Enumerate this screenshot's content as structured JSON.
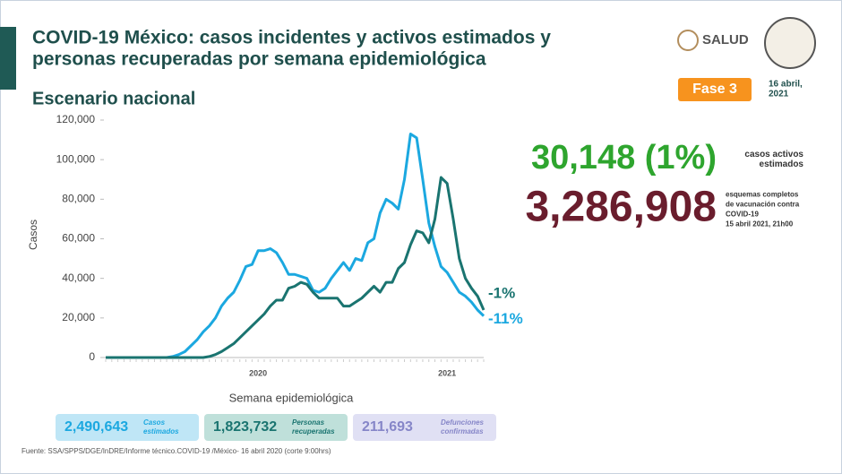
{
  "header": {
    "title": [
      "COVID-19 México: casos incidentes y activos estimados y",
      "personas recuperadas por semana epidemiológica"
    ],
    "subtitle": "Escenario nacional",
    "logo": "SALUD",
    "phase": "Fase 3",
    "date": [
      "16 abril,",
      "2021"
    ]
  },
  "chart_data": {
    "type": "line",
    "ylabel": "Casos",
    "xlabel": "Semana epidemiológica",
    "categories": [
      null,
      null,
      null,
      null,
      null,
      null,
      null,
      null,
      null,
      null,
      null,
      null,
      null,
      null,
      null,
      null,
      null,
      null,
      null,
      null,
      null,
      null,
      null,
      null,
      null,
      "2020",
      null,
      null,
      null,
      null,
      null,
      null,
      null,
      null,
      null,
      null,
      null,
      null,
      null,
      null,
      null,
      null,
      null,
      null,
      null,
      null,
      null,
      null,
      null,
      null,
      null,
      null,
      null,
      null,
      null,
      null,
      "2021",
      null,
      null,
      null,
      null,
      null,
      null
    ],
    "series": [
      {
        "color": "#1ba8e0",
        "values": [
          0,
          0,
          0,
          0,
          0,
          0,
          0,
          0,
          0,
          0,
          0,
          500,
          1500,
          3000,
          6000,
          9000,
          13000,
          16000,
          20000,
          26000,
          30000,
          33000,
          39000,
          46000,
          47000,
          54000,
          54000,
          55000,
          53000,
          48000,
          42000,
          42000,
          41000,
          40000,
          34000,
          33000,
          35000,
          40000,
          44000,
          48000,
          44000,
          50000,
          49000,
          58000,
          60000,
          73000,
          80000,
          78000,
          75000,
          90000,
          113000,
          111000,
          90000,
          68000,
          56000,
          46000,
          43000,
          38000,
          33000,
          31000,
          28000,
          24000,
          21000
        ]
      },
      {
        "color": "#1a7470",
        "values": [
          0,
          0,
          0,
          0,
          0,
          0,
          0,
          0,
          0,
          0,
          0,
          0,
          0,
          0,
          0,
          0,
          0,
          500,
          1500,
          3000,
          5000,
          7000,
          10000,
          13000,
          16000,
          19000,
          22000,
          26000,
          29000,
          29000,
          35000,
          36000,
          38000,
          37000,
          33000,
          30000,
          30000,
          30000,
          30000,
          26000,
          26000,
          28000,
          30000,
          33000,
          36000,
          33000,
          38000,
          38000,
          45000,
          48000,
          57000,
          64000,
          63000,
          58000,
          70000,
          91000,
          88000,
          70000,
          50000,
          40000,
          35000,
          31000,
          24000
        ]
      }
    ],
    "annotations": [
      {
        "text": "-1%",
        "series": 1,
        "color": "#1a7470"
      },
      {
        "text": "-11%",
        "series": 0,
        "color": "#1ba8e0"
      }
    ],
    "ylim": [
      0,
      120000
    ],
    "yticks": [
      0,
      {
        "value": 20000,
        "label": "20,000"
      },
      {
        "value": 40000,
        "label": "40,000"
      },
      {
        "value": 60000,
        "label": "60,000"
      },
      {
        "value": 80000,
        "label": "80,000"
      },
      {
        "value": 100000,
        "label": "100,000"
      },
      {
        "value": 120000,
        "label": "120,000"
      }
    ],
    "grid": false
  },
  "stats": [
    {
      "value": "30,148 (1%)",
      "color": "#2ea52e",
      "label": [
        "casos activos",
        "estimados"
      ]
    },
    {
      "value": "3,286,908",
      "color": "#6a1d2d",
      "label": [
        "esquemas completos",
        "de vacunación contra",
        "COVID-19",
        "15 abril 2021, 21h00"
      ]
    }
  ],
  "totals": [
    {
      "value": "2,490,643",
      "label": [
        "Casos",
        "estimados"
      ],
      "color": "#1ba8e0",
      "bg": "#bfe6f6"
    },
    {
      "value": "1,823,732",
      "label": [
        "Personas",
        "recuperadas"
      ],
      "color": "#1a7470",
      "bg": "#bfe0da"
    },
    {
      "value": "211,693",
      "label": [
        "Defunciones",
        "confirmadas"
      ],
      "color": "#8686c8",
      "bg": "#e0e0f4"
    }
  ],
  "source": "Fuente: SSA/SPPS/DGE/InDRE/Informe técnico.COVID-19 /México- 16 abril 2020 (corte 9:00hrs)"
}
